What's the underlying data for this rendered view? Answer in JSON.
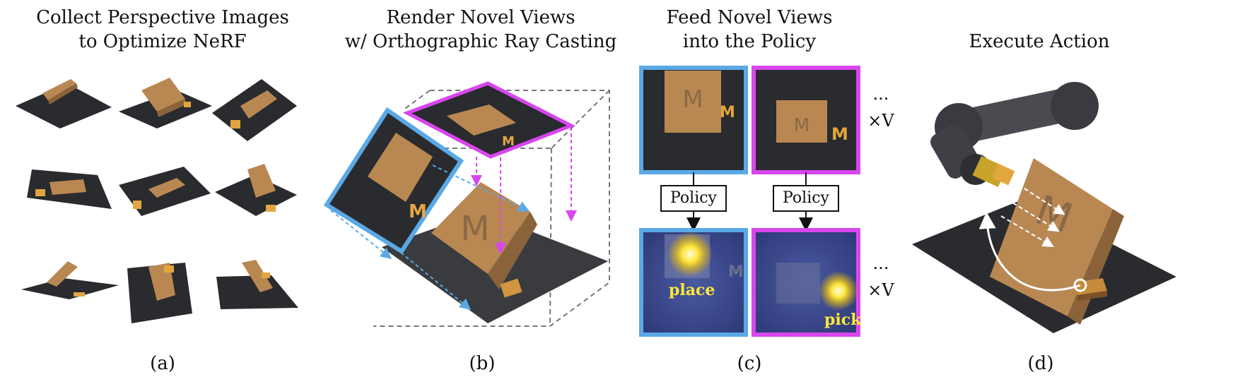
{
  "panels": {
    "a": {
      "title_line1": "Collect Perspective Images",
      "title_line2": "to Optimize NeRF",
      "caption": "(a)"
    },
    "b": {
      "title_line1": "Render Novel Views",
      "title_line2": "w/ Orthographic Ray Casting",
      "caption": "(b)"
    },
    "c": {
      "title_line1": "Feed Novel Views",
      "title_line2": "into the Policy",
      "caption": "(c)",
      "policy_label": "Policy",
      "repeat_dots": "...",
      "repeat_label": "×V",
      "place_label": "place",
      "pick_label": "pick"
    },
    "d": {
      "title": "Execute Action",
      "caption": "(d)"
    }
  },
  "colors": {
    "view1_border": "#5aa9e6",
    "view2_border": "#d946ef",
    "board": "#2a2b2e",
    "block": "#b98852",
    "heatmap_bg": "#3a4a8c",
    "label_yellow": "#ffe83a"
  }
}
